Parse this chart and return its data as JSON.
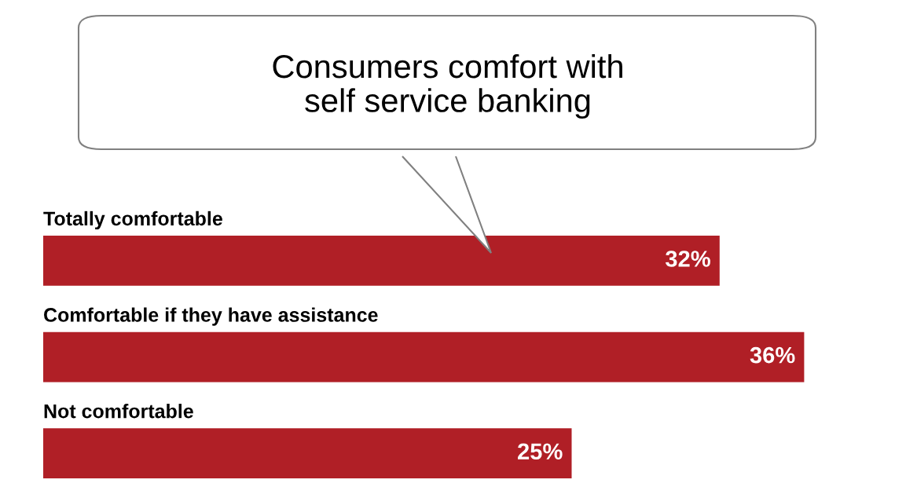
{
  "chart_data": {
    "type": "bar",
    "orientation": "horizontal",
    "title": "Consumers comfort with\nself service banking",
    "categories": [
      "Totally comfortable",
      "Comfortable if they have assistance",
      "Not comfortable"
    ],
    "values": [
      32,
      36,
      25
    ],
    "value_labels": [
      "32%",
      "36%",
      "25%"
    ],
    "colors": [
      "#b01f26",
      "#b01f26",
      "#b01f26"
    ]
  }
}
